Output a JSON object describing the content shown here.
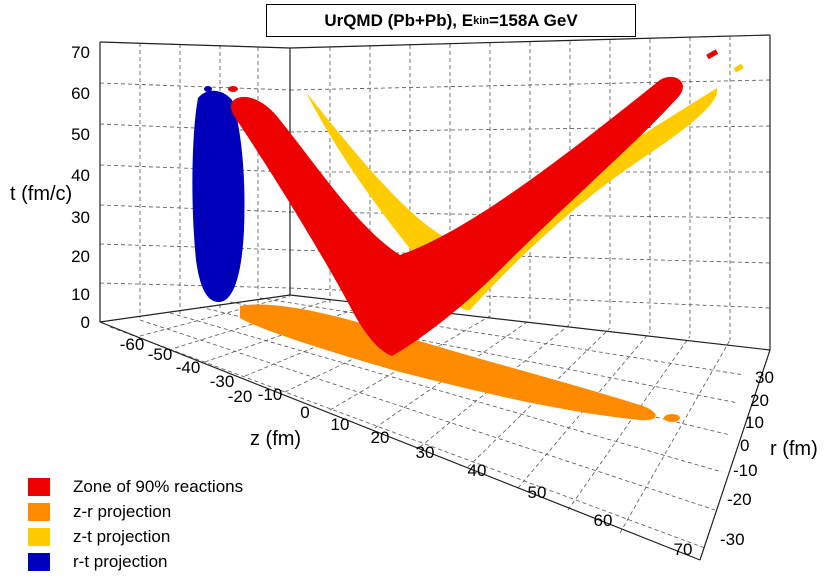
{
  "chart_data": {
    "type": "3d-surface",
    "title": {
      "prefix": "UrQMD (Pb+Pb), E",
      "subscript": "kin",
      "suffix": "=158A GeV"
    },
    "axes": {
      "t": {
        "label": "t (fm/c)",
        "range": [
          0,
          70
        ],
        "ticks": [
          "0",
          "10",
          "20",
          "30",
          "40",
          "50",
          "60",
          "70"
        ]
      },
      "z": {
        "label": "z (fm)",
        "range": [
          -60,
          70
        ],
        "ticks": [
          "-60",
          "-50",
          "-40",
          "-30",
          "-20",
          "-10",
          "0",
          "10",
          "20",
          "30",
          "40",
          "50",
          "60",
          "70"
        ]
      },
      "r": {
        "label": "r (fm)",
        "range": [
          -30,
          30
        ],
        "ticks": [
          "30",
          "20",
          "10",
          "0",
          "-10",
          "-20",
          "-30"
        ]
      }
    },
    "grid": true,
    "legend_placement": "bottom-left",
    "series": [
      {
        "name": "Zone of 90% reactions",
        "color": "#ee0000",
        "shape": "V-shaped zone, apex near z=0,t=0, arms reaching z=-60 and z=+60 at t~60"
      },
      {
        "name": "z-r projection",
        "color": "#ff8c00",
        "shape": "elongated ellipse on floor, z from -60 to 60, r from -10 to 10"
      },
      {
        "name": "z-t projection",
        "color": "#ffcc00",
        "shape": "V-shaped band on back wall"
      },
      {
        "name": "r-t projection",
        "color": "#0000bb",
        "shape": "vertical band on left wall, t from 5 to 60"
      }
    ]
  }
}
